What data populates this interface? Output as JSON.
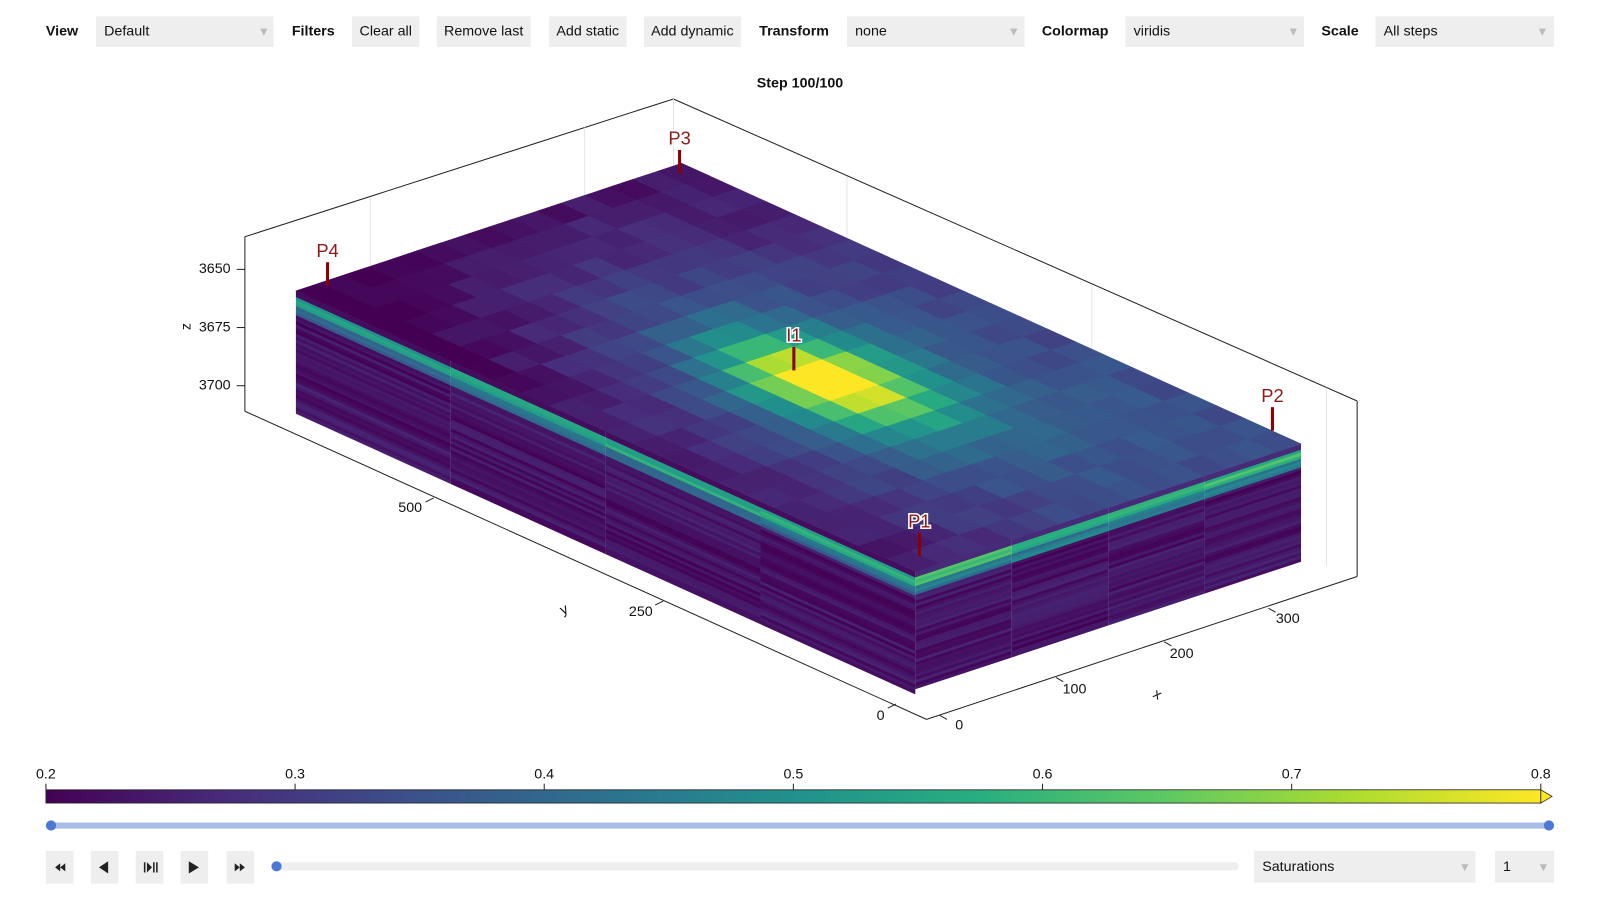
{
  "toolbar": {
    "view_label": "View",
    "view_value": "Default",
    "filters_label": "Filters",
    "buttons": [
      "Clear all",
      "Remove last",
      "Add static",
      "Add dynamic"
    ],
    "transform_label": "Transform",
    "transform_value": "none",
    "colormap_label": "Colormap",
    "colormap_value": "viridis",
    "scale_label": "Scale",
    "scale_value": "All steps"
  },
  "plot": {
    "title": "Step 100/100",
    "z_label": "z",
    "z_ticks": [
      3650,
      3675,
      3700
    ],
    "y_label": "y",
    "y_ticks": [
      0,
      250,
      500
    ],
    "x_label": "x",
    "x_ticks": [
      0,
      100,
      200,
      300
    ],
    "wells": [
      "P1",
      "P2",
      "P3",
      "P4",
      "I1"
    ]
  },
  "colorbar": {
    "range": [
      0.2,
      0.8
    ],
    "ticks": [
      0.2,
      0.3,
      0.4,
      0.5,
      0.6,
      0.7,
      0.8
    ]
  },
  "player": {
    "field_value": "Saturations",
    "index_value": "1"
  }
}
